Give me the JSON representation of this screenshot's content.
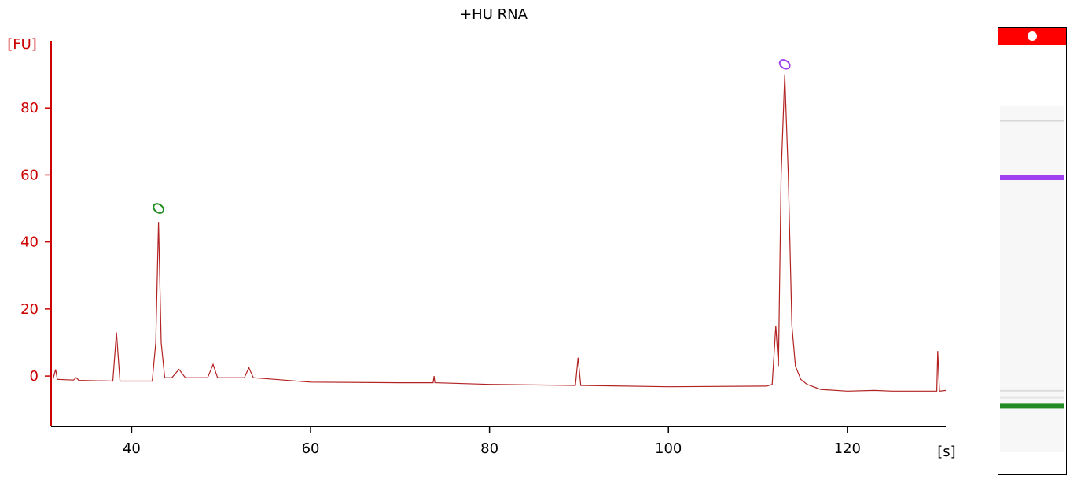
{
  "chart_data": {
    "type": "line",
    "title": "+HU RNA",
    "xlabel": "[s]",
    "ylabel": "[FU]",
    "xlim": [
      31,
      131
    ],
    "ylim": [
      -15,
      100
    ],
    "x_ticks": [
      40,
      60,
      80,
      100,
      120
    ],
    "y_ticks": [
      0,
      20,
      40,
      60,
      80
    ],
    "grid": false,
    "line_color": "#b22222",
    "axis_color": "#cc0000",
    "series": [
      {
        "points": [
          [
            31.2,
            -1
          ],
          [
            31.5,
            2
          ],
          [
            31.7,
            -1
          ],
          [
            33.5,
            -1.2
          ],
          [
            33.8,
            -0.5
          ],
          [
            34.1,
            -1.3
          ],
          [
            37.9,
            -1.5
          ],
          [
            38.3,
            13
          ],
          [
            38.7,
            -1.5
          ],
          [
            42.3,
            -1.5
          ],
          [
            42.7,
            10
          ],
          [
            43.0,
            46
          ],
          [
            43.3,
            10
          ],
          [
            43.7,
            -0.5
          ],
          [
            44.5,
            -0.5
          ],
          [
            45.3,
            2
          ],
          [
            46.0,
            -0.5
          ],
          [
            48.5,
            -0.5
          ],
          [
            49.1,
            3.5
          ],
          [
            49.6,
            -0.5
          ],
          [
            52.6,
            -0.5
          ],
          [
            53.1,
            2.5
          ],
          [
            53.6,
            -0.5
          ],
          [
            60,
            -1.8
          ],
          [
            70,
            -2.0
          ],
          [
            73.7,
            -2.0
          ],
          [
            73.8,
            0
          ],
          [
            73.9,
            -2.0
          ],
          [
            80,
            -2.5
          ],
          [
            89.6,
            -2.8
          ],
          [
            89.9,
            5.5
          ],
          [
            90.2,
            -2.8
          ],
          [
            100,
            -3.2
          ],
          [
            111.0,
            -3.0
          ],
          [
            111.6,
            -2.5
          ],
          [
            112.0,
            15
          ],
          [
            112.3,
            3
          ],
          [
            112.6,
            60
          ],
          [
            113.0,
            90
          ],
          [
            113.4,
            60
          ],
          [
            113.8,
            15
          ],
          [
            114.2,
            3
          ],
          [
            114.8,
            -1
          ],
          [
            115.5,
            -2.5
          ],
          [
            117,
            -4
          ],
          [
            120,
            -4.5
          ],
          [
            123,
            -4.3
          ],
          [
            125,
            -4.5
          ],
          [
            130.0,
            -4.5
          ],
          [
            130.1,
            7.5
          ],
          [
            130.3,
            -4.5
          ],
          [
            131,
            -4.3
          ]
        ]
      }
    ],
    "peak_markers": [
      {
        "x": 43.0,
        "y": 50,
        "color": "#228b22"
      },
      {
        "x": 113.0,
        "y": 93,
        "color": "#a040f0"
      }
    ],
    "gel_lane": {
      "top_color": "#ff0000",
      "bands": [
        {
          "position": 0.2,
          "color": "#a040f0",
          "strength": 1
        },
        {
          "position": 0.86,
          "color": "#228b22",
          "strength": 1
        },
        {
          "position": 0.04,
          "color": "#d9d9d9",
          "strength": 0.4
        },
        {
          "position": 0.82,
          "color": "#dddddd",
          "strength": 0.3
        },
        {
          "position": 0.84,
          "color": "#e4e4e4",
          "strength": 0.3
        }
      ]
    }
  }
}
